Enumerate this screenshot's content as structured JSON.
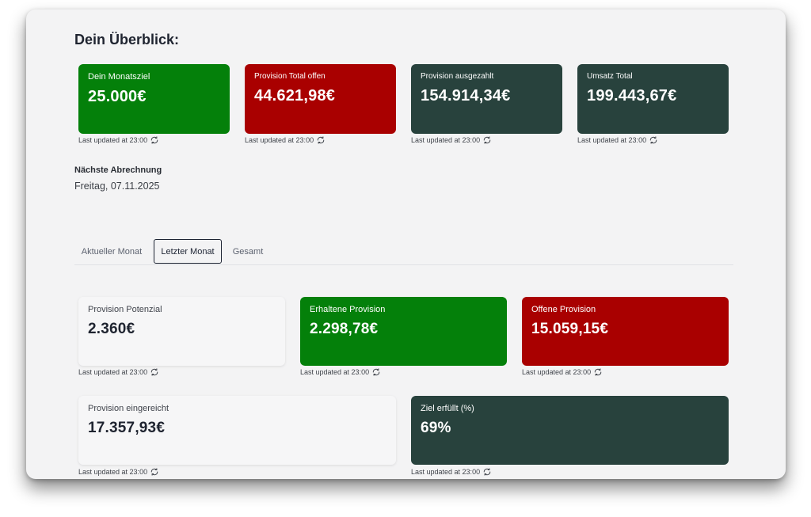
{
  "overview": {
    "title": "Dein Überblick:",
    "cards": [
      {
        "label": "Dein Monatsziel",
        "value": "25.000€",
        "color": "#04800a"
      },
      {
        "label": "Provision Total offen",
        "value": "44.621,98€",
        "color": "#a90000"
      },
      {
        "label": "Provision ausgezahlt",
        "value": "154.914,34€",
        "color": "#28423d"
      },
      {
        "label": "Umsatz Total",
        "value": "199.443,67€",
        "color": "#28423d"
      }
    ]
  },
  "updated_text": "Last updated at 23:00",
  "next_billing": {
    "label": "Nächste Abrechnung",
    "date": "Freitag, 07.11.2025"
  },
  "tabs": [
    {
      "label": "Aktueller Monat",
      "active": false
    },
    {
      "label": "Letzter Monat",
      "active": true
    },
    {
      "label": "Gesamt",
      "active": false
    }
  ],
  "month": {
    "cards": [
      {
        "label": "Provision Potenzial",
        "value": "2.360€",
        "color": "#f6f6f7"
      },
      {
        "label": "Erhaltene Provision",
        "value": "2.298,78€",
        "color": "#04800a"
      },
      {
        "label": "Offene Provision",
        "value": "15.059,15€",
        "color": "#a90000"
      },
      {
        "label": "Provision eingereicht",
        "value": "17.357,93€",
        "color": "#f6f6f7"
      },
      {
        "label": "Ziel erfüllt (%)",
        "value": "69%",
        "color": "#28423d"
      }
    ]
  },
  "icons": {
    "refresh": "refresh-icon"
  }
}
